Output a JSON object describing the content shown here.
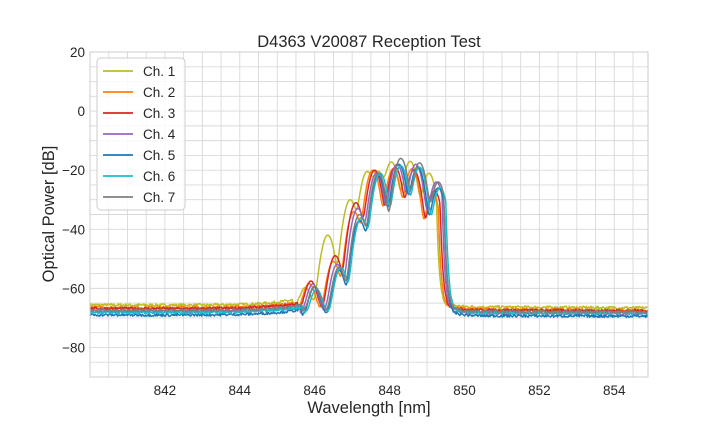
{
  "chart_data": {
    "type": "line",
    "title": "D4363 V20087 Reception Test",
    "xlabel": "Wavelength [nm]",
    "ylabel": "Optical Power [dB]",
    "xlim": [
      840.0,
      854.9
    ],
    "ylim": [
      -90,
      20
    ],
    "xticks": [
      842,
      844,
      846,
      848,
      850,
      852,
      854
    ],
    "xtick_labels": [
      "842",
      "844",
      "846",
      "848",
      "850",
      "852",
      "854"
    ],
    "yticks": [
      20,
      0,
      -20,
      -40,
      -60,
      -80
    ],
    "ytick_labels": [
      "20",
      "0",
      "−20",
      "−40",
      "−60",
      "−80"
    ],
    "grid": true,
    "minor_grid_step_x": 0.5,
    "minor_grid_step_y": 5,
    "legend_position": "top-left",
    "series": [
      {
        "name": "Ch. 1",
        "color": "#bcbd22",
        "baseline_left": -65.6,
        "baseline_right": -66.6,
        "band_edge_left": 845.4,
        "band_edge_right": 849.25,
        "peaks": [
          [
            845.75,
            -61
          ],
          [
            846.35,
            -42
          ],
          [
            846.95,
            -30
          ],
          [
            847.4,
            -20.5
          ],
          [
            847.7,
            -20.5
          ],
          [
            848.05,
            -17.2
          ],
          [
            848.55,
            -17
          ],
          [
            849.05,
            -21
          ]
        ]
      },
      {
        "name": "Ch. 2",
        "color": "#ff7f0e",
        "baseline_left": -66.4,
        "baseline_right": -67.4,
        "band_edge_left": 845.5,
        "band_edge_right": 849.3,
        "peaks": [
          [
            845.85,
            -59
          ],
          [
            846.5,
            -51
          ],
          [
            847.05,
            -34
          ],
          [
            847.55,
            -20
          ],
          [
            848.1,
            -19.5
          ],
          [
            848.6,
            -19.5
          ],
          [
            849.15,
            -28
          ]
        ]
      },
      {
        "name": "Ch. 3",
        "color": "#d62728",
        "baseline_left": -66.8,
        "baseline_right": -67.6,
        "band_edge_left": 845.55,
        "band_edge_right": 849.35,
        "peaks": [
          [
            845.9,
            -58
          ],
          [
            846.55,
            -49
          ],
          [
            847.1,
            -31
          ],
          [
            847.6,
            -20
          ],
          [
            848.15,
            -19
          ],
          [
            848.65,
            -20
          ],
          [
            849.2,
            -27
          ]
        ]
      },
      {
        "name": "Ch. 4",
        "color": "#9467bd",
        "baseline_left": -67.8,
        "baseline_right": -68.6,
        "band_edge_left": 845.6,
        "band_edge_right": 849.4,
        "peaks": [
          [
            845.95,
            -59
          ],
          [
            846.6,
            -52
          ],
          [
            847.15,
            -33
          ],
          [
            847.65,
            -21
          ],
          [
            848.2,
            -18
          ],
          [
            848.7,
            -18
          ],
          [
            849.25,
            -24
          ]
        ]
      },
      {
        "name": "Ch. 5",
        "color": "#1f77b4",
        "baseline_left": -69.0,
        "baseline_right": -69.4,
        "band_edge_left": 845.65,
        "band_edge_right": 849.45,
        "peaks": [
          [
            846.0,
            -60
          ],
          [
            846.65,
            -54
          ],
          [
            847.2,
            -37
          ],
          [
            847.7,
            -22
          ],
          [
            848.25,
            -18
          ],
          [
            848.75,
            -19
          ],
          [
            849.3,
            -26
          ]
        ]
      },
      {
        "name": "Ch. 6",
        "color": "#17becf",
        "baseline_left": -68.2,
        "baseline_right": -68.4,
        "band_edge_left": 845.7,
        "band_edge_right": 849.5,
        "peaks": [
          [
            846.05,
            -61
          ],
          [
            846.7,
            -53
          ],
          [
            847.25,
            -36
          ],
          [
            847.75,
            -21
          ],
          [
            848.3,
            -18.5
          ],
          [
            848.8,
            -19
          ],
          [
            849.35,
            -26
          ]
        ]
      },
      {
        "name": "Ch. 7",
        "color": "#7f7f7f",
        "baseline_left": -67.4,
        "baseline_right": -68.0,
        "band_edge_left": 845.65,
        "band_edge_right": 849.45,
        "peaks": [
          [
            846.0,
            -60
          ],
          [
            846.65,
            -53
          ],
          [
            847.2,
            -35
          ],
          [
            847.7,
            -21
          ],
          [
            848.3,
            -16
          ],
          [
            848.8,
            -17.5
          ],
          [
            849.3,
            -24
          ]
        ]
      }
    ]
  }
}
